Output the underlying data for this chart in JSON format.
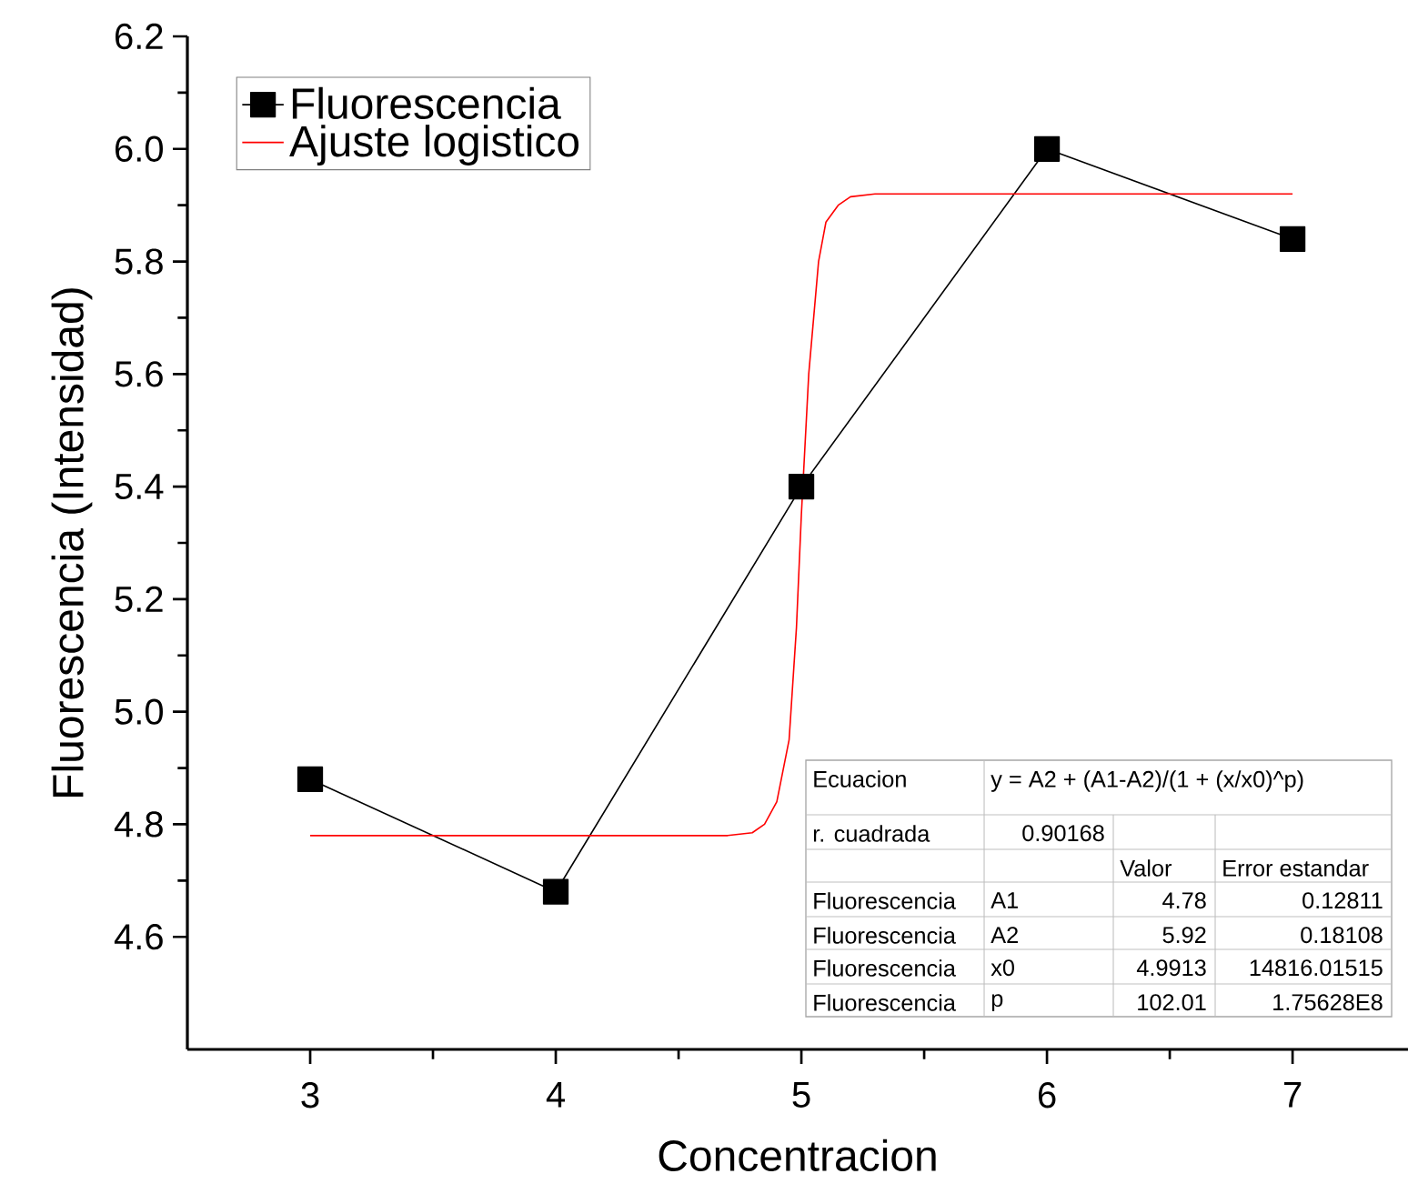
{
  "chart_data": {
    "type": "line",
    "xlabel": "Concentracion",
    "ylabel": "Fluorescencia (Intensidad)",
    "xlim": [
      2.5,
      7.47
    ],
    "ylim": [
      4.4,
      6.2
    ],
    "xticks": [
      3,
      4,
      5,
      6,
      7
    ],
    "yticks": [
      4.6,
      4.8,
      {
        "value": 5.0,
        "label": "5.0"
      },
      5.2,
      5.4,
      5.6,
      5.8,
      {
        "value": 6.0,
        "label": "6.0"
      },
      6.2
    ],
    "legend": "top left",
    "grid": false,
    "series": [
      {
        "name": "Fluorescencia",
        "color": "#000000",
        "marker": "square",
        "x": [
          3,
          4,
          5,
          6,
          7
        ],
        "values": [
          4.88,
          4.68,
          5.4,
          6.0,
          5.84
        ]
      },
      {
        "name": "Ajuste logistico",
        "color": "#ff0000",
        "marker": "none",
        "x": [
          3,
          4.7,
          4.8,
          4.85,
          4.9,
          4.95,
          4.98,
          5.0,
          5.03,
          5.07,
          5.1,
          5.15,
          5.2,
          5.3,
          5.4,
          7
        ],
        "values": [
          4.78,
          4.78,
          4.785,
          4.8,
          4.84,
          4.95,
          5.15,
          5.35,
          5.6,
          5.8,
          5.87,
          5.9,
          5.915,
          5.92,
          5.92,
          5.92
        ]
      }
    ],
    "annotations": [
      "Ecuacion",
      "y = A2 + (A1-A2)/(1 + (x/x0)^p)",
      "r. cuadrada",
      "0.90168",
      "Valor",
      "Error estandar",
      "Fluorescencia",
      "A1",
      "4.78",
      "0.12811",
      "Fluorescencia",
      "A2",
      "5.92",
      "0.18108",
      "Fluorescencia",
      "x0",
      "4.9913",
      "14816.01515",
      "Fluorescencia",
      "p",
      "102.01",
      "1.75628E8"
    ]
  }
}
